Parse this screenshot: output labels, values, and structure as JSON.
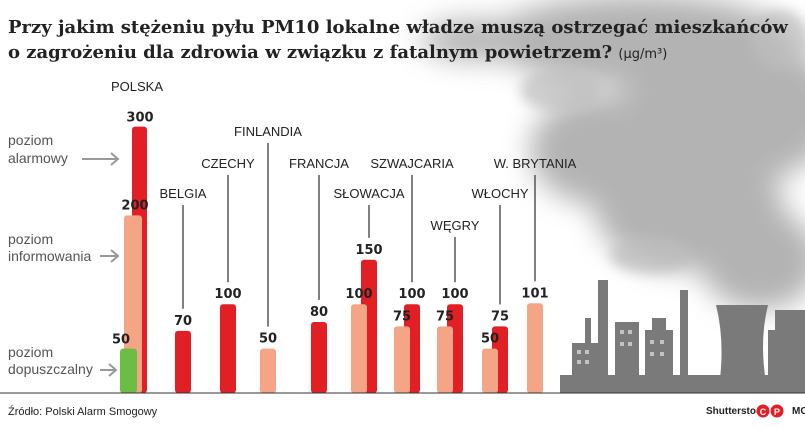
{
  "chart_data": {
    "type": "bar",
    "title_line1": "Przy jakim stężeniu pyłu PM10 lokalne władze muszą ostrzegać mieszkańców",
    "title_line2": "o zagrożeniu dla zdrowia w związku z fatalnym powietrzem?",
    "unit": "(µg/m³)",
    "categories": [
      "POLSKA",
      "BELGIA",
      "CZECHY",
      "FINLANDIA",
      "FRANCJA",
      "SŁOWACJA",
      "SZWAJCARIA",
      "WĘGRY",
      "WŁOCHY",
      "W. BRYTANIA"
    ],
    "series": [
      {
        "name": "poziom dopuszczalny",
        "values": [
          50,
          null,
          null,
          null,
          null,
          null,
          null,
          null,
          null,
          null
        ]
      },
      {
        "name": "poziom informowania",
        "values": [
          200,
          null,
          null,
          50,
          null,
          100,
          75,
          75,
          50,
          101
        ]
      },
      {
        "name": "poziom alarmowy",
        "values": [
          300,
          70,
          100,
          null,
          80,
          150,
          100,
          100,
          75,
          null
        ]
      }
    ],
    "level_labels": [
      {
        "line1": "poziom",
        "line2": "alarmowy"
      },
      {
        "line1": "poziom",
        "line2": "informowania"
      },
      {
        "line1": "poziom",
        "line2": "dopuszczalny"
      }
    ],
    "colors": {
      "alarm": "#e31f26",
      "info": "#f4a585",
      "allowed": "#6cbd45",
      "smoke": "#9a9a9a",
      "factory": "#7a7a7a"
    }
  },
  "footer": {
    "source": "Źródło: Polski Alarm Smogowy",
    "credit": "Shutterstock",
    "agency": "MC"
  }
}
